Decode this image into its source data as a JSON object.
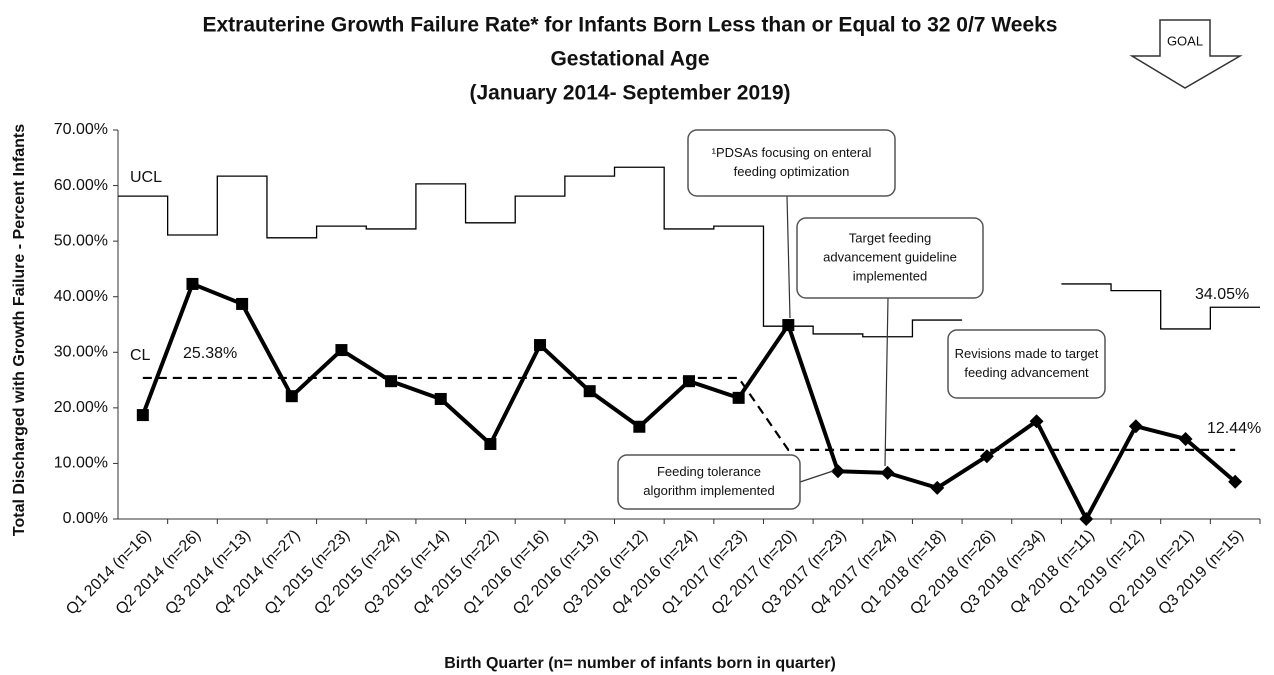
{
  "chart_data": {
    "type": "line",
    "title": [
      "Extrauterine Growth Failure Rate* for Infants Born Less than or Equal to 32 0/7 Weeks",
      "Gestational Age",
      "(January 2014- September 2019)"
    ],
    "x_label": "Birth Quarter  (n= number of infants born in quarter)",
    "y_label": "Total Discharged with Growth Failure - Percent Infants",
    "categories": [
      "Q1 2014 (n=16)",
      "Q2 2014 (n=26)",
      "Q3 2014 (n=13)",
      "Q4 2014 (n=27)",
      "Q1 2015 (n=23)",
      "Q2 2015 (n=24)",
      "Q3 2015 (n=14)",
      "Q4 2015 (n=22)",
      "Q1 2016 (n=16)",
      "Q2 2016 (n=13)",
      "Q3 2016 (n=12)",
      "Q4 2016 (n=24)",
      "Q1 2017 (n=23)",
      "Q2 2017 (n=20)",
      "Q3 2017 (n=23)",
      "Q4 2017 (n=24)",
      "Q1 2018 (n=18)",
      "Q2 2018 (n=26)",
      "Q3 2018 (n=34)",
      "Q4 2018 (n=11)",
      "Q1 2019 (n=12)",
      "Q2 2019 (n=21)",
      "Q3 2019 (n=15)"
    ],
    "series": [
      {
        "name": "Rate",
        "color": "#000000",
        "values": [
          18.7,
          42.3,
          38.7,
          22.1,
          30.4,
          24.8,
          21.6,
          13.5,
          31.3,
          23.0,
          16.6,
          24.8,
          21.8,
          34.9,
          8.6,
          8.3,
          5.6,
          11.3,
          17.6,
          0,
          16.7,
          14.4,
          6.7
        ]
      },
      {
        "name": "UCL",
        "color": "#000000",
        "values": [
          58.1,
          51.1,
          61.7,
          50.6,
          52.7,
          52.2,
          60.3,
          53.3,
          58.1,
          61.7,
          63.3,
          52.2,
          52.7,
          34.7,
          33.3,
          32.8,
          35.8,
          null,
          null,
          42.3,
          41.1,
          34.2,
          38.1
        ]
      },
      {
        "name": "CL",
        "color": "#000000",
        "values": [
          25.38,
          25.38,
          25.38,
          25.38,
          25.38,
          25.38,
          25.38,
          25.38,
          25.38,
          25.38,
          25.38,
          25.38,
          25.38,
          12.44,
          12.44,
          12.44,
          12.44,
          12.44,
          12.44,
          12.44,
          12.44,
          12.44,
          12.44
        ]
      }
    ],
    "value_labels": [
      "25.38%",
      "34.05%",
      "12.44%"
    ],
    "ylim": [
      0,
      70
    ],
    "yticks": [
      {
        "value": 0,
        "label": "0.00%"
      },
      {
        "value": 10,
        "label": "10.00%"
      },
      {
        "value": 20,
        "label": "20.00%"
      },
      {
        "value": 30,
        "label": "30.00%"
      },
      {
        "value": 40,
        "label": "40.00%"
      },
      {
        "value": 50,
        "label": "50.00%"
      },
      {
        "value": 60,
        "label": "60.00%"
      },
      {
        "value": 70,
        "label": "70.00%"
      }
    ],
    "annotations": [
      {
        "lines": [
          "¹PDSAs focusing on enteral",
          "feeding optimization"
        ]
      },
      {
        "lines": [
          "Target feeding",
          "advancement guideline",
          "implemented"
        ]
      },
      {
        "lines": [
          "Revisions made to target",
          "feeding advancement"
        ]
      },
      {
        "lines": [
          "Feeding tolerance",
          "algorithm implemented"
        ]
      }
    ],
    "goal_label": "GOAL"
  }
}
